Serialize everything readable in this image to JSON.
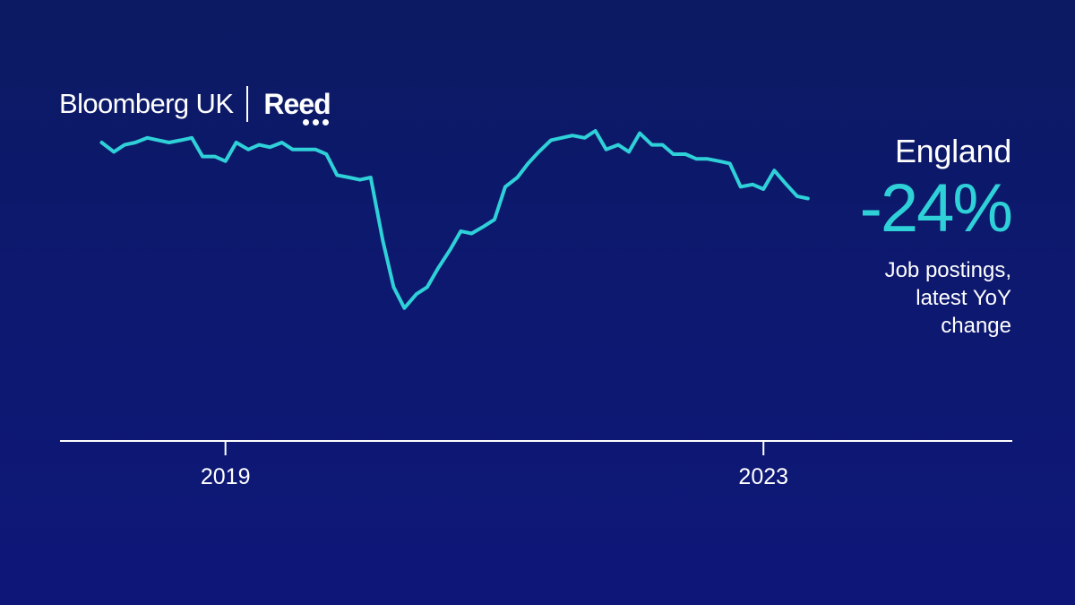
{
  "branding": {
    "primary": "Bloomberg UK",
    "partner": "Reed"
  },
  "panel": {
    "region": "England",
    "headline_value": "-24%",
    "caption_lines": [
      "Job postings,",
      "latest YoY",
      "change"
    ]
  },
  "colors": {
    "background": "#0d1870",
    "line": "#2fd1d9",
    "text": "#ffffff",
    "axis": "#ffffff"
  },
  "chart_data": {
    "type": "line",
    "title": "England",
    "xlabel": "",
    "ylabel": "",
    "x_range": [
      2017.77,
      2024.85
    ],
    "y_range": [
      -0.3,
      1.13
    ],
    "grid": false,
    "x_ticks": [
      {
        "value": 2019,
        "label": "2019"
      },
      {
        "value": 2023,
        "label": "2023"
      }
    ],
    "series": [
      {
        "values": [
          [
            2018.08,
            0.98
          ],
          [
            2018.17,
            0.94
          ],
          [
            2018.25,
            0.97
          ],
          [
            2018.33,
            0.98
          ],
          [
            2018.42,
            1.0
          ],
          [
            2018.5,
            0.99
          ],
          [
            2018.58,
            0.98
          ],
          [
            2018.67,
            0.99
          ],
          [
            2018.75,
            1.0
          ],
          [
            2018.83,
            0.92
          ],
          [
            2018.92,
            0.92
          ],
          [
            2019.0,
            0.9
          ],
          [
            2019.08,
            0.98
          ],
          [
            2019.17,
            0.95
          ],
          [
            2019.25,
            0.97
          ],
          [
            2019.33,
            0.96
          ],
          [
            2019.42,
            0.98
          ],
          [
            2019.5,
            0.95
          ],
          [
            2019.58,
            0.95
          ],
          [
            2019.67,
            0.95
          ],
          [
            2019.75,
            0.93
          ],
          [
            2019.83,
            0.84
          ],
          [
            2019.92,
            0.83
          ],
          [
            2020.0,
            0.82
          ],
          [
            2020.08,
            0.83
          ],
          [
            2020.17,
            0.56
          ],
          [
            2020.25,
            0.36
          ],
          [
            2020.33,
            0.27
          ],
          [
            2020.42,
            0.33
          ],
          [
            2020.5,
            0.36
          ],
          [
            2020.58,
            0.44
          ],
          [
            2020.67,
            0.52
          ],
          [
            2020.75,
            0.6
          ],
          [
            2020.83,
            0.59
          ],
          [
            2020.92,
            0.62
          ],
          [
            2021.0,
            0.65
          ],
          [
            2021.08,
            0.79
          ],
          [
            2021.17,
            0.83
          ],
          [
            2021.25,
            0.89
          ],
          [
            2021.33,
            0.94
          ],
          [
            2021.42,
            0.99
          ],
          [
            2021.5,
            1.0
          ],
          [
            2021.58,
            1.01
          ],
          [
            2021.67,
            1.0
          ],
          [
            2021.75,
            1.03
          ],
          [
            2021.83,
            0.95
          ],
          [
            2021.92,
            0.97
          ],
          [
            2022.0,
            0.94
          ],
          [
            2022.08,
            1.02
          ],
          [
            2022.17,
            0.97
          ],
          [
            2022.25,
            0.97
          ],
          [
            2022.33,
            0.93
          ],
          [
            2022.42,
            0.93
          ],
          [
            2022.5,
            0.91
          ],
          [
            2022.58,
            0.91
          ],
          [
            2022.67,
            0.9
          ],
          [
            2022.75,
            0.89
          ],
          [
            2022.83,
            0.79
          ],
          [
            2022.92,
            0.8
          ],
          [
            2023.0,
            0.78
          ],
          [
            2023.08,
            0.86
          ],
          [
            2023.17,
            0.8
          ],
          [
            2023.25,
            0.75
          ],
          [
            2023.33,
            0.74
          ]
        ]
      }
    ]
  }
}
